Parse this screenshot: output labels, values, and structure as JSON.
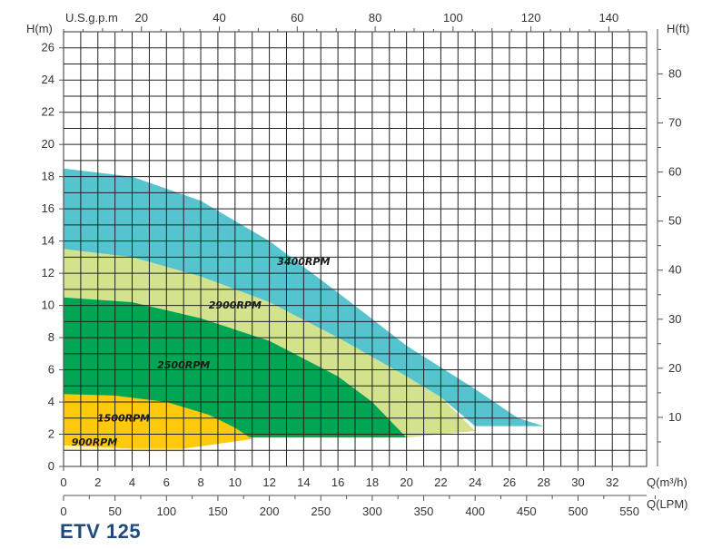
{
  "model": "ETV 125",
  "chart_data": {
    "type": "area",
    "title": "",
    "y_left_label": "H(m)",
    "y_right_label": "H(ft)",
    "x_bottom_label": "Q(m³/h)",
    "x_lpm_label": "Q(LPM)",
    "x_top_label": "U.S.g.p.m",
    "xlim_m3h": [
      0,
      34
    ],
    "ylim_m": [
      0,
      27
    ],
    "grid": true,
    "x_ticks_m3h": [
      0,
      2,
      4,
      6,
      8,
      10,
      12,
      14,
      16,
      18,
      20,
      22,
      24,
      26,
      28,
      30,
      32
    ],
    "y_ticks_m": [
      0,
      2,
      4,
      6,
      8,
      10,
      12,
      14,
      16,
      18,
      20,
      22,
      24,
      26
    ],
    "y_ticks_ft": [
      10,
      20,
      30,
      40,
      50,
      60,
      70,
      80
    ],
    "x_ticks_lpm": [
      0,
      50,
      100,
      150,
      200,
      250,
      300,
      350,
      400,
      450,
      500,
      550
    ],
    "x_ticks_usgpm": [
      20,
      40,
      60,
      80,
      100,
      120,
      140
    ],
    "series": [
      {
        "name": "3400RPM",
        "color": "#55c4cf",
        "label_at": [
          14,
          12.5
        ],
        "upper": [
          [
            0,
            18.5
          ],
          [
            4,
            18.0
          ],
          [
            8,
            16.5
          ],
          [
            12,
            14.0
          ],
          [
            16,
            10.8
          ],
          [
            20,
            7.5
          ],
          [
            24,
            4.8
          ],
          [
            26.5,
            3.0
          ],
          [
            28,
            2.5
          ]
        ],
        "lower": [
          [
            0,
            13.5
          ],
          [
            4,
            13.0
          ],
          [
            8,
            11.8
          ],
          [
            12,
            10.2
          ],
          [
            16,
            8.0
          ],
          [
            20,
            5.6
          ],
          [
            22,
            4.3
          ],
          [
            24,
            2.5
          ]
        ]
      },
      {
        "name": "2900RPM",
        "color": "#d3e28c",
        "label_at": [
          10,
          9.8
        ],
        "upper": [
          [
            0,
            13.5
          ],
          [
            4,
            13.0
          ],
          [
            8,
            11.8
          ],
          [
            12,
            10.2
          ],
          [
            16,
            8.0
          ],
          [
            20,
            5.6
          ],
          [
            22,
            4.3
          ],
          [
            24,
            2.2
          ]
        ],
        "lower": [
          [
            0,
            10.5
          ],
          [
            4,
            10.2
          ],
          [
            8,
            9.2
          ],
          [
            12,
            7.8
          ],
          [
            16,
            5.6
          ],
          [
            18,
            4.0
          ],
          [
            20,
            1.8
          ]
        ]
      },
      {
        "name": "2500RPM",
        "color": "#00a651",
        "label_at": [
          7,
          6.1
        ],
        "upper": [
          [
            0,
            10.5
          ],
          [
            4,
            10.2
          ],
          [
            8,
            9.2
          ],
          [
            12,
            7.8
          ],
          [
            16,
            5.6
          ],
          [
            18,
            4.0
          ],
          [
            20,
            1.8
          ]
        ],
        "lower": [
          [
            0,
            1.8
          ],
          [
            20,
            1.8
          ]
        ]
      },
      {
        "name": "1500RPM",
        "color": "#ffc90e",
        "label_at": [
          3.5,
          2.8
        ],
        "upper": [
          [
            0,
            4.5
          ],
          [
            3,
            4.4
          ],
          [
            6,
            4.0
          ],
          [
            8.5,
            3.2
          ],
          [
            10,
            2.4
          ],
          [
            11,
            1.7
          ]
        ],
        "lower": [
          [
            0,
            1.3
          ],
          [
            2,
            1.2
          ],
          [
            4,
            1.1
          ],
          [
            7,
            1.1
          ],
          [
            11,
            1.7
          ]
        ]
      },
      {
        "name": "900RPM",
        "color": "#fdf5b9",
        "label_at": [
          1.8,
          1.3
        ],
        "upper": [
          [
            0,
            1.3
          ],
          [
            2,
            1.2
          ],
          [
            4,
            1.1
          ],
          [
            7,
            1.1
          ]
        ],
        "lower": [
          [
            0,
            1.0
          ],
          [
            3,
            1.0
          ],
          [
            5,
            0.9
          ],
          [
            7,
            0.9
          ]
        ]
      }
    ]
  }
}
